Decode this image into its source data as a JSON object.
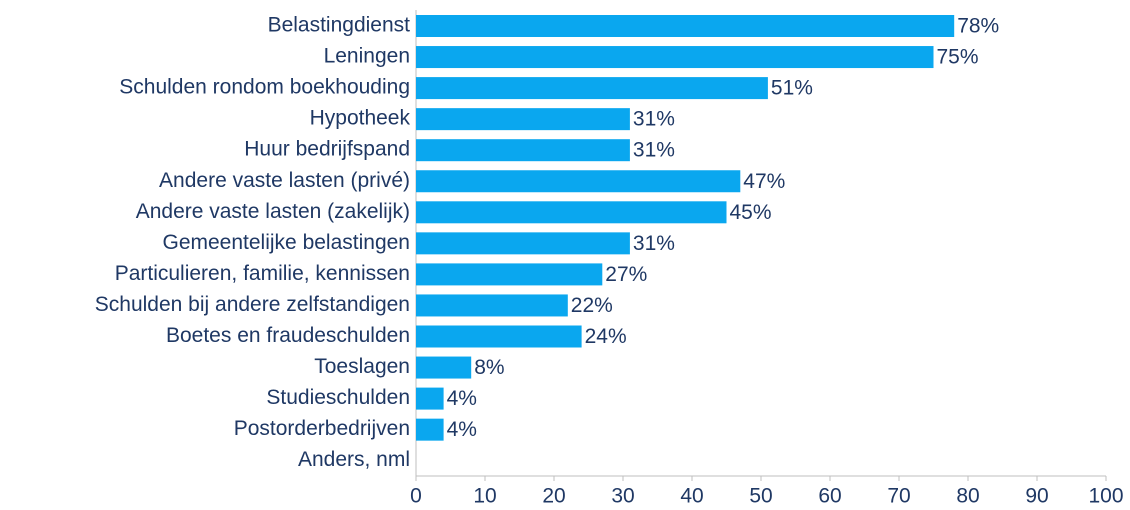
{
  "chart_data": {
    "type": "bar",
    "orientation": "horizontal",
    "categories": [
      "Belastingdienst",
      "Leningen",
      "Schulden rondom boekhouding",
      "Hypotheek",
      "Huur bedrijfspand",
      "Andere vaste lasten (privé)",
      "Andere vaste lasten (zakelijk)",
      "Gemeentelijke belastingen",
      "Particulieren, familie, kennissen",
      "Schulden bij andere zelfstandigen",
      "Boetes en fraudeschulden",
      "Toeslagen",
      "Studieschulden",
      "Postorderbedrijven",
      "Anders, nml"
    ],
    "values": [
      78,
      75,
      51,
      31,
      31,
      47,
      45,
      31,
      27,
      22,
      24,
      8,
      4,
      4,
      null
    ],
    "value_labels": [
      "78%",
      "75%",
      "51%",
      "31%",
      "31%",
      "47%",
      "45%",
      "31%",
      "27%",
      "22%",
      "24%",
      "8%",
      "4%",
      "4%",
      null
    ],
    "color": "#0aa7ef",
    "xlim": [
      0,
      100
    ],
    "xticks": [
      0,
      10,
      20,
      30,
      40,
      50,
      60,
      70,
      80,
      90,
      100
    ],
    "grid": false
  }
}
